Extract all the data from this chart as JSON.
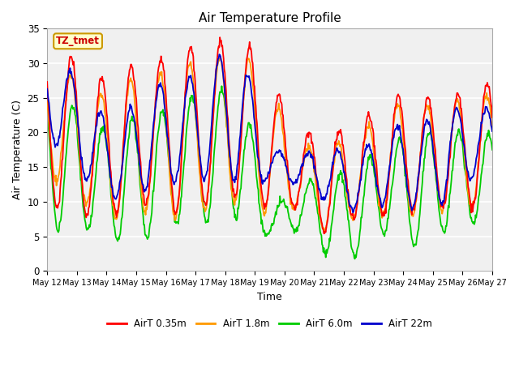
{
  "title": "Air Temperature Profile",
  "xlabel": "Time",
  "ylabel": "Air Temperature (C)",
  "ylim": [
    0,
    35
  ],
  "yticks": [
    0,
    5,
    10,
    15,
    20,
    25,
    30,
    35
  ],
  "annotation_label": "TZ_tmet",
  "annotation_box_color": "#ffffcc",
  "annotation_border_color": "#cc9900",
  "annotation_text_color": "#cc0000",
  "bg_color": "#e8e8e8",
  "plot_bg_color": "#f0f0f0",
  "line_colors": {
    "AirT 0.35m": "#ff0000",
    "AirT 1.8m": "#ff9900",
    "AirT 6.0m": "#00cc00",
    "AirT 22m": "#0000cc"
  },
  "legend_labels": [
    "AirT 0.35m",
    "AirT 1.8m",
    "AirT 6.0m",
    "AirT 22m"
  ],
  "x_tick_labels": [
    "May 12",
    "May 13",
    "May 14",
    "May 15",
    "May 16",
    "May 17",
    "May 18",
    "May 19",
    "May 20",
    "May 21",
    "May 22",
    "May 23",
    "May 24",
    "May 25",
    "May 26",
    "May 27"
  ],
  "num_days": 15,
  "points_per_day": 48,
  "T035_peaks": [
    33,
    27,
    29.5,
    30,
    32.5,
    32.5,
    34.5,
    28,
    20,
    20,
    21,
    25.5,
    25,
    25,
    27
  ],
  "T035_mins": [
    9,
    8,
    8,
    10,
    8,
    10,
    11,
    9,
    9,
    5,
    8,
    8,
    9,
    9,
    9
  ],
  "T18_peaks": [
    30,
    24.5,
    28,
    28,
    30,
    30,
    32.5,
    26,
    18,
    18,
    19.5,
    24,
    24,
    24,
    25.5
  ],
  "T18_mins": [
    13,
    9,
    7,
    9,
    7,
    9,
    10,
    8,
    9,
    5,
    8,
    8,
    8,
    9,
    9
  ],
  "T60_peaks": [
    26,
    20,
    22,
    22,
    25,
    25.5,
    27.5,
    8.5,
    13,
    13.5,
    15,
    18.5,
    20,
    20,
    20
  ],
  "T60_mins": [
    6,
    6,
    4,
    5,
    7,
    7,
    8,
    5,
    6,
    2,
    2,
    6,
    3,
    6,
    7
  ],
  "T22_peaks": [
    31,
    23.5,
    22,
    27,
    27,
    30.5,
    32.5,
    17.5,
    17,
    17.5,
    17,
    21,
    21,
    23.5,
    23.5
  ],
  "T22_mins": [
    18,
    12,
    10,
    12,
    13,
    13,
    13,
    13,
    12.5,
    10,
    8.5,
    10,
    9,
    10,
    14
  ]
}
